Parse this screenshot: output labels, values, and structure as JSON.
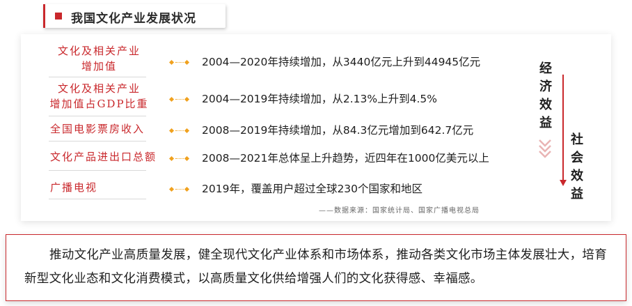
{
  "title": "我国文化产业发展状况",
  "rows": [
    {
      "label_line1": "文化及相关产业",
      "label_line2": "增加值",
      "desc": "2004—2020年持续增加，从3440亿元上升到44945亿元"
    },
    {
      "label_line1": "文化及相关产业",
      "label_line2": "增加值占GDP比重",
      "desc": "2004—2019年持续增加，从2.13%上升到4.5%"
    },
    {
      "label_line1": "全国电影票房收入",
      "label_line2": "",
      "desc": "2008—2019年持续增加，从84.3亿元增加到642.7亿元"
    },
    {
      "label_line1": "文化产品进出口总额",
      "label_line2": "",
      "desc": "2008—2021年总体呈上升趋势，近四年在1000亿美元以上"
    },
    {
      "label_line1": "广播电视",
      "label_line2": "",
      "desc": "2019年，覆盖用户超过全球230个国家和地区"
    }
  ],
  "source": "——数据来源：国家统计局、国家广播电视总局",
  "side": {
    "economic": [
      "经",
      "济",
      "效",
      "益"
    ],
    "social": [
      "社",
      "会",
      "效",
      "益"
    ]
  },
  "summary": "推动文化产业高质量发展，健全现代文化产业体系和市场体系，推动各类文化市场主体发展壮大，培育新型文化业态和文化消费模式，以高质量文化供给增强人们的文化获得感、幸福感。",
  "colors": {
    "accent": "#c9282c",
    "bullet": "#f0a11e"
  }
}
